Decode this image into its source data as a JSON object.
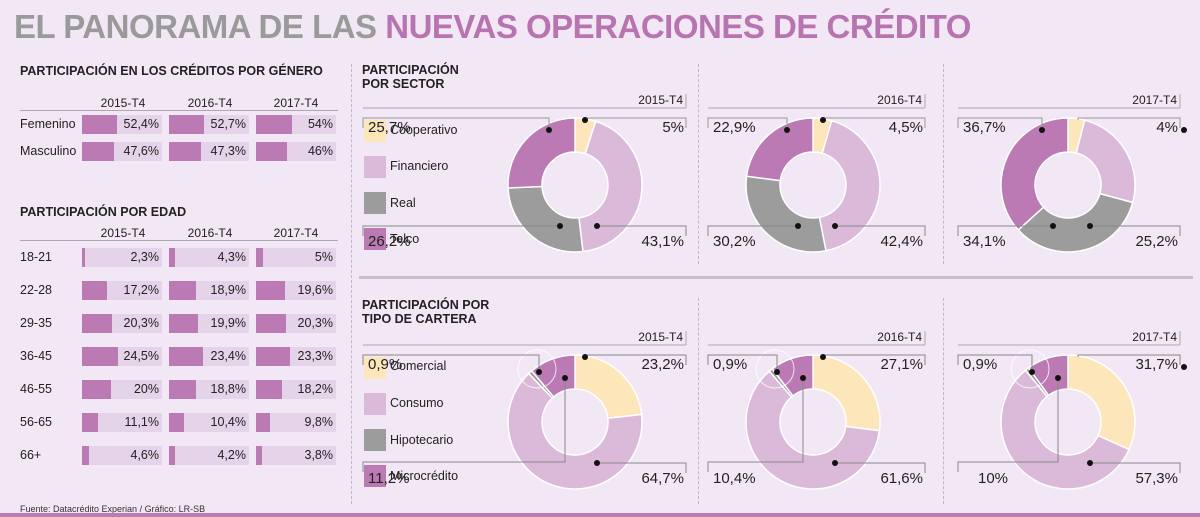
{
  "title": {
    "part1": "EL PANORAMA DE LAS ",
    "part2": "NUEVAS OPERACIONES DE CRÉDITO"
  },
  "colors": {
    "accent": "#bb7ab4",
    "grey_title": "#9a9a9a",
    "bar_bg": "#e4d3e9",
    "background": "#f2e7f4",
    "cooperativo": "#fde6b9",
    "financiero": "#dbbad9",
    "real": "#9c9c9c",
    "telco": "#bb7ab4"
  },
  "footer": "Fuente: Datacrédito Experian   / Gráfico: LR-SB",
  "chart_data": [
    {
      "type": "bar",
      "title": "PARTICIPACIÓN EN LOS CRÉDITOS POR GÉNERO",
      "categories": [
        "Femenino",
        "Masculino"
      ],
      "periods": [
        "2015-T4",
        "2016-T4",
        "2017-T4"
      ],
      "series": [
        {
          "name": "2015-T4",
          "values": [
            52.4,
            47.6
          ],
          "labels": [
            "52,4%",
            "47,6%"
          ]
        },
        {
          "name": "2016-T4",
          "values": [
            52.7,
            47.3
          ],
          "labels": [
            "52,7%",
            "47,3%"
          ]
        },
        {
          "name": "2017-T4",
          "values": [
            54,
            46
          ],
          "labels": [
            "54%",
            "46%"
          ]
        }
      ],
      "ylim": [
        0,
        100
      ]
    },
    {
      "type": "bar",
      "title": "PARTICIPACIÓN POR EDAD",
      "categories": [
        "18-21",
        "22-28",
        "29-35",
        "36-45",
        "46-55",
        "56-65",
        "66+"
      ],
      "periods": [
        "2015-T4",
        "2016-T4",
        "2017-T4"
      ],
      "series": [
        {
          "name": "2015-T4",
          "values": [
            2.3,
            17.2,
            20.3,
            24.5,
            20,
            11.1,
            4.6
          ],
          "labels": [
            "2,3%",
            "17,2%",
            "20,3%",
            "24,5%",
            "20%",
            "11,1%",
            "4,6%"
          ]
        },
        {
          "name": "2016-T4",
          "values": [
            4.3,
            18.9,
            19.9,
            23.4,
            18.8,
            10.4,
            4.2
          ],
          "labels": [
            "4,3%",
            "18,9%",
            "19,9%",
            "23,4%",
            "18,8%",
            "10,4%",
            "4,2%"
          ]
        },
        {
          "name": "2017-T4",
          "values": [
            5,
            19.6,
            20.3,
            23.3,
            18.2,
            9.8,
            3.8
          ],
          "labels": [
            "5%",
            "19,6%",
            "20,3%",
            "23,3%",
            "18,2%",
            "9,8%",
            "3,8%"
          ]
        }
      ],
      "ylim": [
        0,
        50
      ]
    },
    {
      "type": "pie",
      "title": "PARTICIPACIÓN POR SECTOR",
      "categories": [
        "Cooperativo",
        "Financiero",
        "Real",
        "Telco"
      ],
      "charts": [
        {
          "period": "2015-T4",
          "values": [
            5,
            43.1,
            26.2,
            25.7
          ],
          "labels": [
            "5%",
            "43,1%",
            "26,2%",
            "25,7%"
          ]
        },
        {
          "period": "2016-T4",
          "values": [
            4.5,
            42.4,
            30.2,
            22.9
          ],
          "labels": [
            "4,5%",
            "42,4%",
            "30,2%",
            "22,9%"
          ]
        },
        {
          "period": "2017-T4",
          "values": [
            4,
            25.2,
            34.1,
            36.7
          ],
          "labels": [
            "4%",
            "25,2%",
            "34,1%",
            "36,7%"
          ]
        }
      ]
    },
    {
      "type": "pie",
      "title": "PARTICIPACIÓN POR TIPO DE CARTERA",
      "categories": [
        "Comercial",
        "Consumo",
        "Hipotecario",
        "Microcrédito"
      ],
      "charts": [
        {
          "period": "2015-T4",
          "values": [
            23.2,
            64.7,
            0.9,
            11.2
          ],
          "labels": [
            "23,2%",
            "64,7%",
            "0,9%",
            "11,2%"
          ]
        },
        {
          "period": "2016-T4",
          "values": [
            27.1,
            61.6,
            0.9,
            10.4
          ],
          "labels": [
            "27,1%",
            "61,6%",
            "0,9%",
            "10,4%"
          ]
        },
        {
          "period": "2017-T4",
          "values": [
            31.7,
            57.3,
            0.9,
            10
          ],
          "labels": [
            "31,7%",
            "57,3%",
            "0,9%",
            "10%"
          ]
        }
      ]
    }
  ],
  "gender": {
    "title": "PARTICIPACIÓN EN LOS CRÉDITOS POR GÉNERO",
    "periods": [
      "2015-T4",
      "2016-T4",
      "2017-T4"
    ],
    "rows": [
      {
        "label": "Femenino",
        "values": [
          "52,4%",
          "52,7%",
          "54%"
        ]
      },
      {
        "label": "Masculino",
        "values": [
          "47,6%",
          "47,3%",
          "46%"
        ]
      }
    ]
  },
  "age": {
    "title": "PARTICIPACIÓN POR EDAD",
    "periods": [
      "2015-T4",
      "2016-T4",
      "2017-T4"
    ],
    "rows": [
      {
        "label": "18-21",
        "values": [
          "2,3%",
          "4,3%",
          "5%"
        ]
      },
      {
        "label": "22-28",
        "values": [
          "17,2%",
          "18,9%",
          "19,6%"
        ]
      },
      {
        "label": "29-35",
        "values": [
          "20,3%",
          "19,9%",
          "20,3%"
        ]
      },
      {
        "label": "36-45",
        "values": [
          "24,5%",
          "23,4%",
          "23,3%"
        ]
      },
      {
        "label": "46-55",
        "values": [
          "20%",
          "18,8%",
          "18,2%"
        ]
      },
      {
        "label": "56-65",
        "values": [
          "11,1%",
          "10,4%",
          "9,8%"
        ]
      },
      {
        "label": "66+",
        "values": [
          "4,6%",
          "4,2%",
          "3,8%"
        ]
      }
    ]
  },
  "sector": {
    "title_line1": "PARTICIPACIÓN",
    "title_line2": "POR SECTOR",
    "legend": [
      "Cooperativo",
      "Financiero",
      "Real",
      "Telco"
    ]
  },
  "cartera": {
    "title_line1": "PARTICIPACIÓN POR",
    "title_line2": "TIPO DE CARTERA",
    "legend": [
      "Comercial",
      "Consumo",
      "Hipotecario",
      "Microcrédito"
    ]
  }
}
